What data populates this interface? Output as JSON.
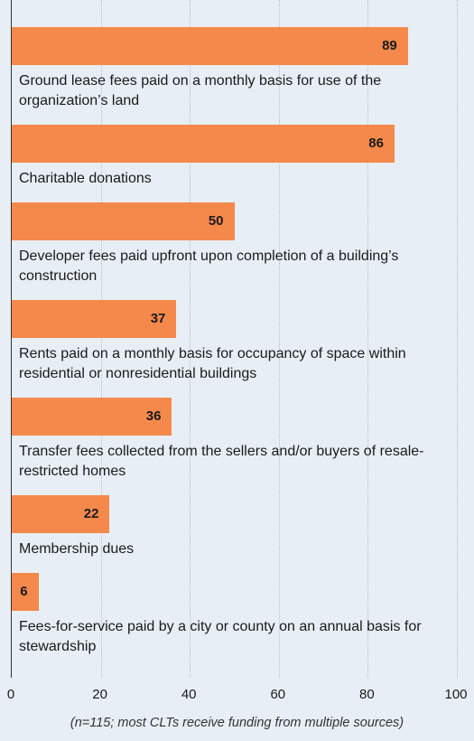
{
  "chart_data": {
    "type": "bar",
    "orientation": "horizontal",
    "categories": [
      "Ground lease fees paid on a monthly basis for use of the organization’s land",
      "Charitable donations",
      "Developer fees paid upfront upon completion of a building’s construction",
      "Rents paid on a monthly basis for occupancy of space within residential or nonresidential buildings",
      "Transfer fees collected from the sellers and/or buyers of resale-restricted homes",
      "Membership dues",
      "Fees-for-service paid by a city or county on an annual basis for stewardship"
    ],
    "values": [
      89,
      86,
      50,
      37,
      36,
      22,
      6
    ],
    "color": "#f4894b",
    "xlim": [
      0,
      100
    ],
    "xticks": [
      0,
      20,
      40,
      60,
      80,
      100
    ],
    "grid": true,
    "note": "(n=115; most CLTs receive funding from multiple sources)"
  }
}
